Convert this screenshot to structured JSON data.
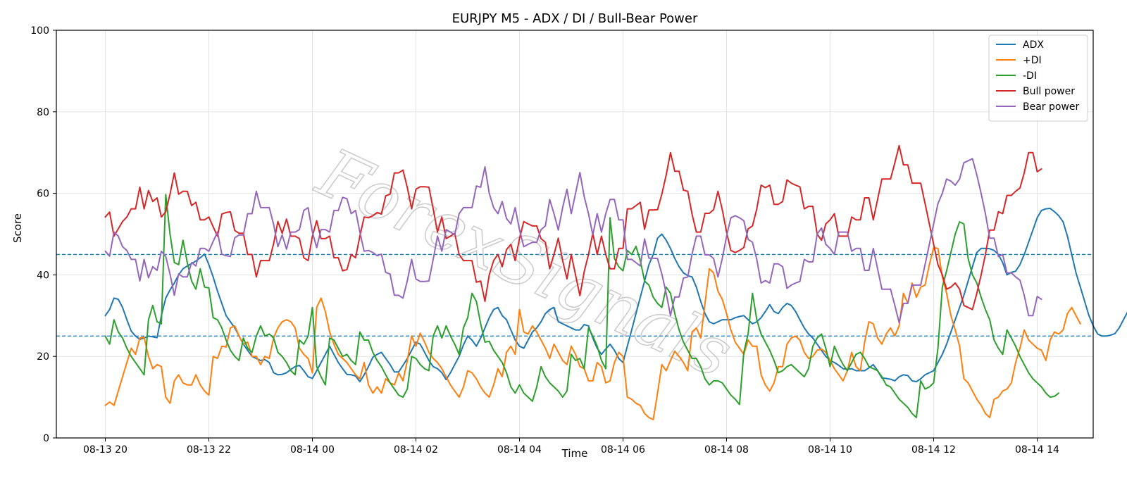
{
  "chart_data": {
    "type": "line",
    "title": "EURJPY M5 - ADX / DI / Bull-Bear Power",
    "xlabel": "Time",
    "ylabel": "Score",
    "ylim": [
      0,
      100
    ],
    "yticks": [
      "0",
      "20",
      "40",
      "60",
      "80",
      "100"
    ],
    "xticks": [
      "08-13 20",
      "08-13 22",
      "08-14 00",
      "08-14 02",
      "08-14 04",
      "08-14 06",
      "08-14 08",
      "08-14 10",
      "08-14 12",
      "08-14 14"
    ],
    "x_start": "08-13 20:00",
    "x_step_minutes": 5,
    "grid": true,
    "legend_position": "top-right",
    "reference_lines": [
      25,
      45
    ],
    "watermark": "ForexSignals",
    "series": [
      {
        "name": "ADX",
        "color": "#1f77b4",
        "values": [
          30.0,
          31.5,
          34.3,
          34.0,
          32.0,
          29.0,
          26.2,
          25.0,
          24.2,
          24.5,
          25.0,
          24.8,
          24.6,
          30.0,
          34.3,
          36.3,
          38.0,
          40.0,
          41.5,
          42.2,
          42.8,
          43.4,
          44.2,
          45.1,
          42.5,
          39.5,
          36.0,
          33.0,
          30.0,
          28.5,
          27.0,
          25.0,
          23.0,
          21.5,
          20.0,
          19.5,
          19.0,
          19.2,
          18.5,
          16.0,
          15.5,
          15.6,
          16.0,
          16.8,
          17.5,
          17.8,
          16.5,
          15.0,
          14.6,
          16.5,
          18.5,
          20.5,
          22.5,
          20.5,
          18.5,
          17.0,
          15.6,
          15.5,
          15.2,
          13.8,
          15.5,
          17.5,
          19.8,
          20.5,
          21.0,
          19.5,
          18.0,
          16.2,
          16.2,
          17.8,
          19.5,
          21.5,
          23.5,
          23.0,
          21.0,
          19.0,
          17.5,
          17.0,
          16.0,
          14.3,
          16.0,
          18.0,
          20.0,
          22.8,
          25.0,
          24.0,
          22.5,
          24.5,
          27.0,
          29.5,
          31.5,
          32.0,
          30.0,
          29.0,
          26.5,
          24.0,
          22.5,
          22.0,
          24.0,
          26.0,
          27.0,
          28.5,
          30.5,
          31.5,
          32.0,
          28.5,
          28.0,
          27.5,
          27.0,
          26.5,
          26.5,
          27.8,
          27.5,
          24.5,
          22.0,
          20.5,
          21.8,
          23.0,
          21.5,
          19.5,
          18.5,
          22.5,
          26.5,
          30.5,
          34.5,
          38.5,
          42.5,
          45.0,
          49.0,
          50.0,
          48.5,
          46.5,
          44.0,
          42.0,
          40.5,
          39.8,
          39.5,
          37.0,
          33.5,
          30.5,
          28.5,
          28.0,
          28.5,
          29.0,
          29.0,
          29.0,
          29.5,
          29.8,
          30.0,
          29.0,
          28.0,
          28.5,
          29.5,
          31.0,
          32.7,
          31.0,
          30.5,
          32.0,
          33.0,
          32.5,
          31.0,
          29.0,
          27.0,
          25.5,
          24.5,
          23.0,
          21.5,
          20.0,
          19.0,
          18.5,
          17.8,
          17.0,
          16.8,
          17.0,
          16.5,
          16.5,
          16.5,
          17.2,
          18.0,
          16.5,
          14.7,
          14.6,
          14.4,
          14.0,
          15.0,
          15.5,
          15.3,
          14.0,
          13.8,
          14.5,
          15.5,
          16.0,
          16.5,
          18.5,
          20.5,
          23.0,
          26.0,
          29.0,
          32.0,
          35.0,
          38.5,
          42.0,
          45.5,
          46.5,
          46.5,
          46.4,
          46.0,
          45.0,
          43.0,
          40.0,
          40.6,
          40.9,
          42.5,
          45.0,
          48.0,
          51.0,
          54.0,
          55.8,
          56.2,
          56.3,
          55.5,
          54.5,
          53.0,
          49.5,
          45.0,
          40.5,
          37.0,
          33.5,
          30.0,
          27.5,
          25.5,
          25.0,
          25.0,
          25.2,
          25.6,
          27.0,
          29.0,
          31.0,
          33.0,
          34.0
        ]
      },
      {
        "name": "+DI",
        "color": "#ff7f0e",
        "values": [
          8.0,
          8.8,
          8.0,
          11.5,
          15.0,
          18.5,
          22.0,
          20.5,
          24.5,
          24.7,
          20.0,
          17.0,
          18.0,
          17.5,
          10.0,
          8.5,
          14.0,
          15.5,
          13.5,
          13.0,
          13.0,
          15.5,
          13.0,
          11.5,
          10.5,
          20.0,
          19.5,
          22.5,
          22.3,
          27.0,
          27.5,
          25.0,
          23.0,
          23.5,
          20.0,
          20.0,
          18.0,
          20.0,
          19.5,
          24.5,
          27.0,
          28.5,
          29.0,
          28.5,
          27.0,
          22.0,
          20.5,
          19.5,
          16.0,
          32.0,
          34.3,
          31.0,
          26.0,
          23.0,
          20.5,
          19.5,
          18.5,
          17.0,
          15.5,
          14.5,
          18.5,
          13.0,
          11.0,
          12.5,
          11.0,
          14.5,
          13.5,
          13.0,
          16.0,
          14.0,
          19.0,
          25.0,
          22.5,
          25.7,
          23.5,
          21.0,
          19.5,
          18.5,
          17.0,
          15.0,
          13.0,
          11.5,
          10.0,
          12.5,
          16.5,
          16.0,
          14.5,
          12.5,
          11.0,
          10.0,
          13.0,
          17.0,
          15.0,
          21.0,
          22.5,
          20.5,
          31.5,
          26.0,
          25.5,
          27.5,
          26.0,
          24.0,
          22.0,
          19.5,
          23.0,
          21.0,
          19.0,
          18.0,
          22.5,
          20.5,
          17.5,
          17.0,
          14.0,
          14.0,
          18.5,
          17.5,
          13.5,
          14.0,
          18.5,
          21.0,
          20.0,
          10.0,
          9.5,
          8.5,
          8.0,
          6.0,
          5.0,
          4.5,
          11.0,
          18.0,
          16.5,
          19.0,
          21.3,
          20.0,
          18.5,
          16.5,
          26.0,
          27.0,
          24.5,
          33.0,
          41.5,
          40.5,
          36.0,
          34.0,
          30.5,
          26.5,
          23.5,
          22.0,
          20.5,
          24.0,
          22.5,
          22.5,
          15.5,
          13.0,
          11.5,
          13.5,
          17.5,
          17.5,
          23.0,
          24.5,
          25.0,
          24.0,
          21.0,
          19.5,
          20.0,
          21.5,
          21.8,
          21.0,
          19.0,
          17.0,
          15.5,
          14.0,
          16.5,
          21.0,
          17.5,
          16.5,
          23.5,
          28.5,
          28.0,
          24.5,
          23.0,
          25.5,
          27.0,
          25.0,
          27.5,
          35.5,
          33.0,
          38.0,
          34.5,
          37.0,
          37.5,
          42.5,
          46.7,
          46.5,
          39.5,
          35.5,
          30.0,
          26.5,
          22.5,
          14.5,
          13.5,
          11.5,
          9.5,
          8.0,
          6.0,
          5.0,
          9.5,
          10.0,
          11.5,
          12.0,
          13.5,
          18.5,
          22.0,
          26.5,
          24.0,
          23.0,
          22.0,
          21.5,
          19.0,
          24.0,
          26.0,
          25.5,
          26.5,
          30.5,
          32.0,
          30.0,
          28.0
        ]
      },
      {
        "name": "-DI",
        "color": "#2ca02c",
        "values": [
          25.0,
          23.0,
          29.0,
          26.0,
          24.5,
          22.0,
          20.0,
          18.5,
          17.0,
          15.5,
          29.0,
          32.5,
          28.5,
          28.0,
          59.7,
          50.0,
          43.0,
          42.5,
          48.5,
          43.0,
          38.5,
          36.5,
          41.5,
          37.0,
          36.8,
          29.5,
          29.0,
          27.0,
          24.0,
          21.5,
          20.0,
          19.0,
          24.5,
          22.0,
          21.0,
          25.0,
          27.5,
          25.0,
          25.5,
          24.5,
          21.0,
          20.0,
          18.5,
          16.5,
          15.5,
          24.0,
          23.0,
          25.0,
          32.0,
          17.5,
          15.0,
          13.0,
          24.5,
          24.0,
          22.0,
          20.0,
          20.5,
          19.0,
          18.0,
          26.0,
          24.0,
          24.0,
          21.0,
          19.0,
          17.5,
          15.5,
          13.5,
          12.0,
          10.5,
          10.0,
          12.0,
          20.0,
          19.5,
          18.0,
          17.0,
          16.5,
          25.0,
          27.5,
          24.5,
          27.5,
          25.0,
          23.0,
          20.5,
          27.0,
          29.5,
          35.5,
          33.5,
          28.0,
          23.5,
          23.7,
          21.5,
          20.0,
          18.5,
          16.0,
          12.5,
          11.0,
          13.0,
          11.0,
          10.0,
          9.0,
          12.5,
          17.5,
          15.0,
          13.5,
          12.5,
          11.5,
          10.0,
          11.5,
          20.5,
          19.0,
          19.5,
          17.0,
          27.0,
          25.0,
          22.5,
          19.0,
          17.0,
          54.0,
          44.0,
          42.0,
          41.0,
          46.0,
          45.0,
          47.0,
          43.5,
          38.5,
          37.5,
          34.5,
          33.0,
          32.0,
          37.0,
          35.5,
          30.5,
          26.5,
          23.5,
          21.5,
          19.5,
          19.5,
          17.5,
          14.5,
          13.0,
          14.0,
          14.0,
          13.5,
          12.0,
          10.5,
          9.5,
          8.2,
          21.0,
          25.5,
          35.5,
          29.0,
          25.5,
          23.5,
          21.5,
          19.0,
          16.0,
          16.5,
          17.5,
          18.0,
          17.0,
          16.0,
          15.0,
          17.0,
          22.5,
          24.5,
          25.5,
          22.0,
          17.5,
          22.5,
          20.0,
          18.0,
          16.5,
          18.5,
          20.5,
          21.0,
          19.5,
          17.5,
          17.0,
          16.5,
          15.0,
          13.0,
          12.5,
          11.0,
          9.5,
          8.5,
          7.5,
          6.0,
          5.0,
          14.0,
          12.0,
          12.5,
          13.5,
          22.0,
          37.0,
          41.0,
          45.5,
          50.0,
          53.0,
          52.5,
          44.0,
          40.0,
          38.0,
          34.5,
          31.5,
          29.0,
          24.0,
          22.0,
          20.5,
          26.5,
          24.5,
          22.5,
          20.0,
          18.0,
          16.0,
          14.5,
          13.5,
          12.5,
          11.0,
          10.0,
          10.2,
          11.0
        ]
      },
      {
        "name": "Bull power",
        "color": "#d62728",
        "values": [
          54.2,
          55.4,
          49.5,
          51.3,
          53.1,
          54.2,
          56.2,
          56.2,
          61.5,
          56.2,
          60.7,
          58.0,
          58.9,
          54.2,
          55.5,
          59.8,
          65.0,
          59.8,
          60.5,
          60.5,
          57.0,
          57.8,
          53.5,
          53.5,
          54.2,
          51.8,
          49.5,
          54.9,
          55.3,
          55.5,
          50.9,
          50.2,
          50.2,
          45.0,
          45.0,
          39.5,
          43.5,
          43.5,
          43.5,
          47.6,
          53.1,
          50.2,
          53.7,
          49.5,
          49.5,
          48.9,
          44.2,
          43.5,
          49.5,
          53.3,
          48.9,
          48.9,
          49.5,
          44.2,
          44.2,
          41.0,
          41.3,
          45.0,
          44.2,
          49.5,
          54.2,
          54.0,
          54.5,
          55.3,
          54.9,
          59.4,
          59.8,
          65.0,
          65.0,
          65.7,
          61.4,
          56.2,
          61.0,
          61.6,
          61.6,
          61.5,
          56.2,
          50.5,
          54.2,
          48.9,
          49.5,
          50.2,
          45.0,
          43.5,
          43.5,
          43.5,
          38.2,
          38.5,
          33.5,
          40.0,
          43.5,
          45.0,
          42.0,
          46.2,
          47.5,
          43.5,
          48.9,
          53.1,
          52.5,
          52.0,
          52.0,
          48.9,
          48.0,
          41.5,
          45.0,
          49.0,
          43.5,
          39.0,
          45.0,
          40.0,
          34.9,
          40.8,
          45.0,
          50.2,
          45.0,
          49.5,
          45.0,
          41.5,
          41.5,
          46.5,
          46.5,
          56.2,
          56.2,
          57.0,
          57.8,
          51.2,
          55.9,
          55.9,
          56.0,
          59.8,
          64.5,
          70.0,
          65.4,
          65.4,
          60.8,
          60.5,
          54.9,
          50.5,
          50.5,
          55.1,
          55.1,
          56.0,
          60.5,
          56.0,
          50.5,
          46.0,
          45.5,
          46.0,
          46.7,
          51.3,
          52.0,
          56.2,
          62.0,
          61.4,
          62.0,
          57.3,
          57.3,
          58.0,
          63.3,
          62.5,
          62.0,
          61.6,
          56.2,
          56.8,
          56.8,
          50.0,
          48.5,
          52.5,
          53.5,
          55.0,
          49.5,
          49.5,
          49.5,
          54.2,
          53.5,
          53.5,
          58.9,
          58.9,
          53.5,
          58.5,
          63.5,
          63.5,
          63.5,
          67.5,
          71.7,
          67.0,
          67.0,
          62.5,
          62.5,
          62.5,
          57.5,
          52.5,
          47.5,
          42.5,
          40.0,
          36.5,
          37.0,
          38.0,
          36.5,
          32.5,
          32.0,
          31.5,
          35.5,
          40.0,
          45.0,
          51.0,
          51.0,
          55.5,
          55.0,
          59.5,
          59.5,
          60.5,
          61.3,
          65.0,
          70.0,
          70.0,
          65.3,
          66.0
        ]
      },
      {
        "name": "Bear power",
        "color": "#9467bd",
        "values": [
          45.8,
          44.6,
          50.5,
          49.5,
          46.9,
          46.0,
          43.8,
          43.8,
          38.5,
          43.8,
          39.3,
          42.0,
          41.1,
          45.8,
          44.5,
          40.2,
          35.0,
          40.2,
          39.5,
          39.5,
          43.0,
          42.2,
          46.5,
          46.5,
          45.8,
          48.2,
          50.5,
          45.1,
          44.7,
          44.5,
          49.1,
          49.8,
          49.8,
          55.0,
          55.0,
          60.5,
          56.5,
          56.5,
          56.5,
          52.4,
          46.9,
          49.8,
          46.3,
          50.5,
          50.5,
          51.1,
          55.8,
          56.5,
          50.5,
          46.7,
          51.1,
          51.1,
          50.5,
          55.8,
          55.8,
          59.0,
          58.7,
          55.0,
          55.8,
          50.5,
          45.8,
          46.0,
          45.5,
          44.7,
          45.1,
          40.6,
          40.2,
          35.0,
          35.0,
          34.3,
          38.6,
          43.8,
          39.0,
          38.4,
          38.4,
          38.5,
          43.8,
          49.5,
          45.8,
          51.1,
          50.5,
          49.8,
          55.0,
          56.5,
          56.5,
          56.5,
          61.8,
          61.5,
          66.5,
          60.0,
          56.5,
          55.0,
          58.0,
          53.8,
          52.5,
          56.5,
          51.1,
          46.9,
          47.5,
          48.0,
          48.0,
          51.1,
          52.0,
          58.5,
          55.0,
          51.0,
          56.5,
          61.0,
          55.0,
          60.0,
          65.1,
          59.2,
          55.0,
          49.8,
          55.0,
          50.5,
          55.0,
          58.5,
          58.5,
          53.5,
          53.5,
          43.8,
          43.8,
          43.0,
          42.2,
          48.8,
          44.1,
          44.1,
          44.0,
          40.2,
          35.5,
          30.0,
          34.6,
          34.6,
          39.2,
          39.5,
          45.1,
          49.5,
          49.5,
          44.9,
          44.9,
          44.0,
          39.5,
          44.0,
          49.5,
          54.0,
          54.5,
          54.0,
          53.3,
          48.7,
          48.0,
          43.8,
          38.0,
          38.6,
          38.0,
          42.7,
          42.7,
          42.0,
          36.7,
          37.5,
          38.0,
          38.4,
          43.8,
          43.2,
          43.2,
          50.0,
          51.5,
          47.5,
          46.5,
          45.0,
          50.5,
          50.5,
          50.5,
          45.8,
          46.5,
          46.5,
          41.1,
          41.1,
          46.5,
          41.5,
          36.5,
          36.5,
          36.5,
          32.5,
          28.3,
          33.0,
          33.0,
          37.5,
          37.5,
          37.5,
          42.5,
          47.5,
          52.5,
          57.5,
          60.0,
          63.5,
          63.0,
          62.0,
          63.5,
          67.5,
          68.0,
          68.5,
          64.5,
          60.0,
          55.0,
          49.0,
          49.0,
          44.5,
          45.0,
          40.5,
          40.5,
          39.5,
          38.7,
          35.0,
          30.0,
          30.0,
          34.7,
          34.0
        ]
      }
    ]
  }
}
